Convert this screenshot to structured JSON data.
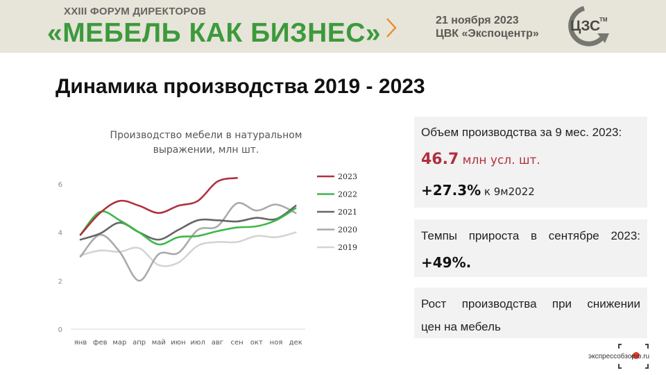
{
  "header": {
    "forum_sub": "XXIII ФОРУМ ДИРЕКТОРОВ",
    "forum_main": "«МЕБЕЛЬ КАК БИЗНЕС»",
    "date": "21 ноября 2023",
    "venue": "ЦВК «Экспоцентр»",
    "logo_text": "ЦЗС",
    "logo_tm": "TM",
    "accent": "#3c9a3c",
    "chevron_color": "#e88b1c"
  },
  "page_title": "Динамика производства 2019  - 2023",
  "chart_data": {
    "type": "line",
    "title": "Производство мебели в натуральном выражении, млн шт.",
    "title_lines": [
      "Производство мебели в натуральном",
      "выражении, млн шт."
    ],
    "categories": [
      "янв",
      "фев",
      "мар",
      "апр",
      "май",
      "июн",
      "июл",
      "авг",
      "сен",
      "окт",
      "ноя",
      "дек"
    ],
    "ylim": [
      0,
      6.6
    ],
    "yticks": [
      "0",
      "2",
      "4",
      "6"
    ],
    "grid": false,
    "legend_position": "right",
    "series": [
      {
        "name": "2023",
        "color": "#b0303e",
        "values": [
          3.9,
          4.8,
          5.3,
          5.1,
          4.8,
          5.1,
          5.3,
          6.1,
          6.25,
          null,
          null,
          null
        ]
      },
      {
        "name": "2022",
        "color": "#3cb94a",
        "values": [
          3.9,
          4.85,
          4.5,
          4.0,
          3.5,
          3.8,
          3.85,
          4.05,
          4.2,
          4.25,
          4.5,
          5.0
        ]
      },
      {
        "name": "2021",
        "color": "#666666",
        "values": [
          3.7,
          3.95,
          4.4,
          4.0,
          3.7,
          4.1,
          4.5,
          4.5,
          4.45,
          4.6,
          4.55,
          5.1
        ]
      },
      {
        "name": "2020",
        "color": "#aaaaaa",
        "values": [
          3.0,
          3.9,
          3.2,
          2.0,
          3.1,
          3.15,
          4.1,
          4.25,
          5.2,
          4.9,
          5.15,
          4.8
        ]
      },
      {
        "name": "2019",
        "color": "#d4d4d4",
        "values": [
          3.05,
          3.25,
          3.2,
          3.35,
          2.65,
          2.75,
          3.45,
          3.6,
          3.6,
          3.85,
          3.8,
          4.0
        ]
      }
    ]
  },
  "card1": {
    "title": "Объем производства за 9 мес. 2023:",
    "value": "46.7",
    "unit": " млн усл. шт.",
    "growth": "+27.3%",
    "growth_suffix": " к 9м2022"
  },
  "card2": {
    "title": "Темпы прироста в сентябре 2023:",
    "value": "+49%."
  },
  "card3": {
    "line1": "Рост производства при снижении",
    "line2": "цен на мебель"
  },
  "badge": {
    "text": "экспрессобзор",
    "domain": "e-o.ru",
    "dot_color": "#d63a2c"
  }
}
